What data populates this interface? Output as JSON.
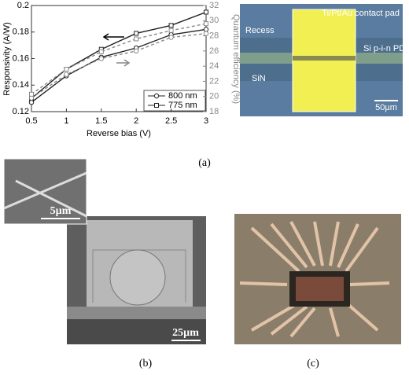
{
  "chart_data": {
    "type": "line",
    "x_label": "Reverse bias (V)",
    "y_label": "Responsivity (A/W)",
    "y2_label": "Quantum efficiency (%)",
    "x": [
      0.5,
      1,
      1.5,
      2,
      2.5,
      3
    ],
    "xlim": [
      0.5,
      3
    ],
    "xticks": [
      0.5,
      1,
      1.5,
      2,
      2.5,
      3
    ],
    "ylim": [
      0.12,
      0.2
    ],
    "yticks": [
      0.12,
      0.14,
      0.16,
      0.18,
      0.2
    ],
    "y2lim": [
      18,
      32
    ],
    "y2ticks": [
      18,
      20,
      22,
      24,
      26,
      28,
      30,
      32
    ],
    "series": [
      {
        "name": "800 nm",
        "color": "#222222",
        "marker": "circle",
        "values": [
          0.127,
          0.147,
          0.161,
          0.168,
          0.178,
          0.182
        ]
      },
      {
        "name": "775 nm",
        "color": "#222222",
        "marker": "square",
        "values": [
          0.13,
          0.152,
          0.167,
          0.179,
          0.185,
          0.195
        ]
      },
      {
        "name": "800 nm",
        "color": "#8a8a8a",
        "marker": "circle",
        "axis": "y2",
        "dashed": true,
        "values": [
          19.8,
          22.9,
          25,
          26,
          27.8,
          28.3
        ]
      },
      {
        "name": "775 nm",
        "color": "#8a8a8a",
        "marker": "square",
        "axis": "y2",
        "dashed": true,
        "values": [
          20.3,
          23.6,
          25.9,
          27.6,
          28.7,
          29.6
        ]
      }
    ]
  },
  "micrograph_a": {
    "pad": "Ti/Pt/Au contact pad",
    "recess": "Recess",
    "pd": "Si p-i-n PD",
    "sin": "SiN",
    "scale": "50µm"
  },
  "micrograph_b": {
    "inset_scale": "5µm",
    "scale": "25µm"
  },
  "panel_labels": [
    "(a)",
    "(b)",
    "(c)"
  ]
}
